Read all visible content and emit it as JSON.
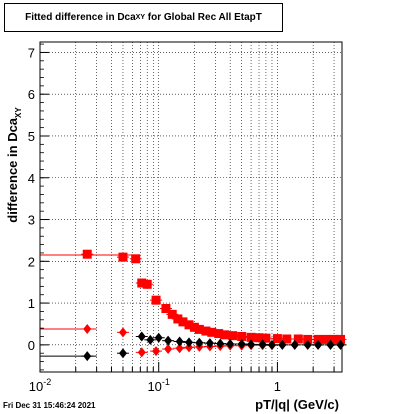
{
  "chart_data": {
    "type": "scatter",
    "title_main": "Fitted difference in Dca",
    "title_sub": "XY",
    "title_rest": " for Global Rec All EtapT",
    "xlabel": "pT/|q| (GeV/c)",
    "ylabel_main": "difference in Dca",
    "ylabel_sub": "XY",
    "x_scale": "log",
    "xlim": [
      0.01,
      3.5
    ],
    "ylim": [
      -0.65,
      7.25
    ],
    "x_ticks": [
      {
        "v": 0.01,
        "b": "10",
        "e": "-2"
      },
      {
        "v": 0.1,
        "b": "10",
        "e": "-1"
      },
      {
        "v": 1,
        "b": "1",
        "e": ""
      }
    ],
    "y_ticks": [
      0,
      1,
      2,
      3,
      4,
      5,
      6,
      7
    ],
    "grid": true,
    "series": [
      {
        "color": "#ff0000",
        "marker": "square",
        "x": [
          0.025,
          0.05,
          0.064,
          0.072,
          0.08,
          0.095,
          0.115,
          0.13,
          0.145,
          0.16,
          0.18,
          0.2,
          0.22,
          0.25,
          0.28,
          0.32,
          0.36,
          0.42,
          0.5,
          0.6,
          0.7,
          0.8,
          1.0,
          1.2,
          1.5,
          1.8,
          2.2,
          2.6,
          3.0,
          3.4
        ],
        "y": [
          2.17,
          2.1,
          2.06,
          1.48,
          1.45,
          1.07,
          0.87,
          0.73,
          0.62,
          0.55,
          0.48,
          0.42,
          0.37,
          0.33,
          0.3,
          0.27,
          0.24,
          0.22,
          0.2,
          0.18,
          0.17,
          0.16,
          0.15,
          0.14,
          0.14,
          0.13,
          0.13,
          0.13,
          0.13,
          0.13
        ],
        "fit_y": 2.15,
        "fit_x": [
          0.0085,
          0.065
        ]
      },
      {
        "color": "#ff0000",
        "marker": "diamond",
        "x": [
          0.025,
          0.05,
          0.072,
          0.095,
          0.12,
          0.15,
          0.18,
          0.22,
          0.27,
          0.33,
          0.4,
          0.5,
          0.6,
          0.75,
          0.9,
          1.1,
          1.4,
          1.8,
          2.2,
          2.8,
          3.4
        ],
        "y": [
          0.38,
          0.3,
          -0.18,
          -0.15,
          -0.1,
          -0.08,
          -0.06,
          -0.05,
          -0.04,
          -0.03,
          -0.02,
          -0.02,
          -0.01,
          -0.01,
          -0.01,
          0.0,
          0.0,
          0.0,
          0.0,
          0.0,
          0.0
        ],
        "fit_y": 0.38,
        "fit_x": [
          0.0085,
          0.03
        ]
      },
      {
        "color": "#000000",
        "marker": "diamond",
        "x": [
          0.025,
          0.05,
          0.072,
          0.085,
          0.1,
          0.12,
          0.15,
          0.18,
          0.22,
          0.27,
          0.33,
          0.4,
          0.5,
          0.6,
          0.75,
          0.9,
          1.1,
          1.4,
          1.8,
          2.2,
          2.8,
          3.4
        ],
        "y": [
          -0.27,
          -0.2,
          0.2,
          0.12,
          0.17,
          0.1,
          0.08,
          0.06,
          0.05,
          0.04,
          0.03,
          0.02,
          0.02,
          0.01,
          0.01,
          0.0,
          0.0,
          0.0,
          0.0,
          0.0,
          0.0,
          0.0
        ],
        "fit_y": -0.27,
        "fit_x": [
          0.0085,
          0.03
        ]
      }
    ]
  },
  "footer_text": "Fri Dec 31 15:46:24 2021"
}
